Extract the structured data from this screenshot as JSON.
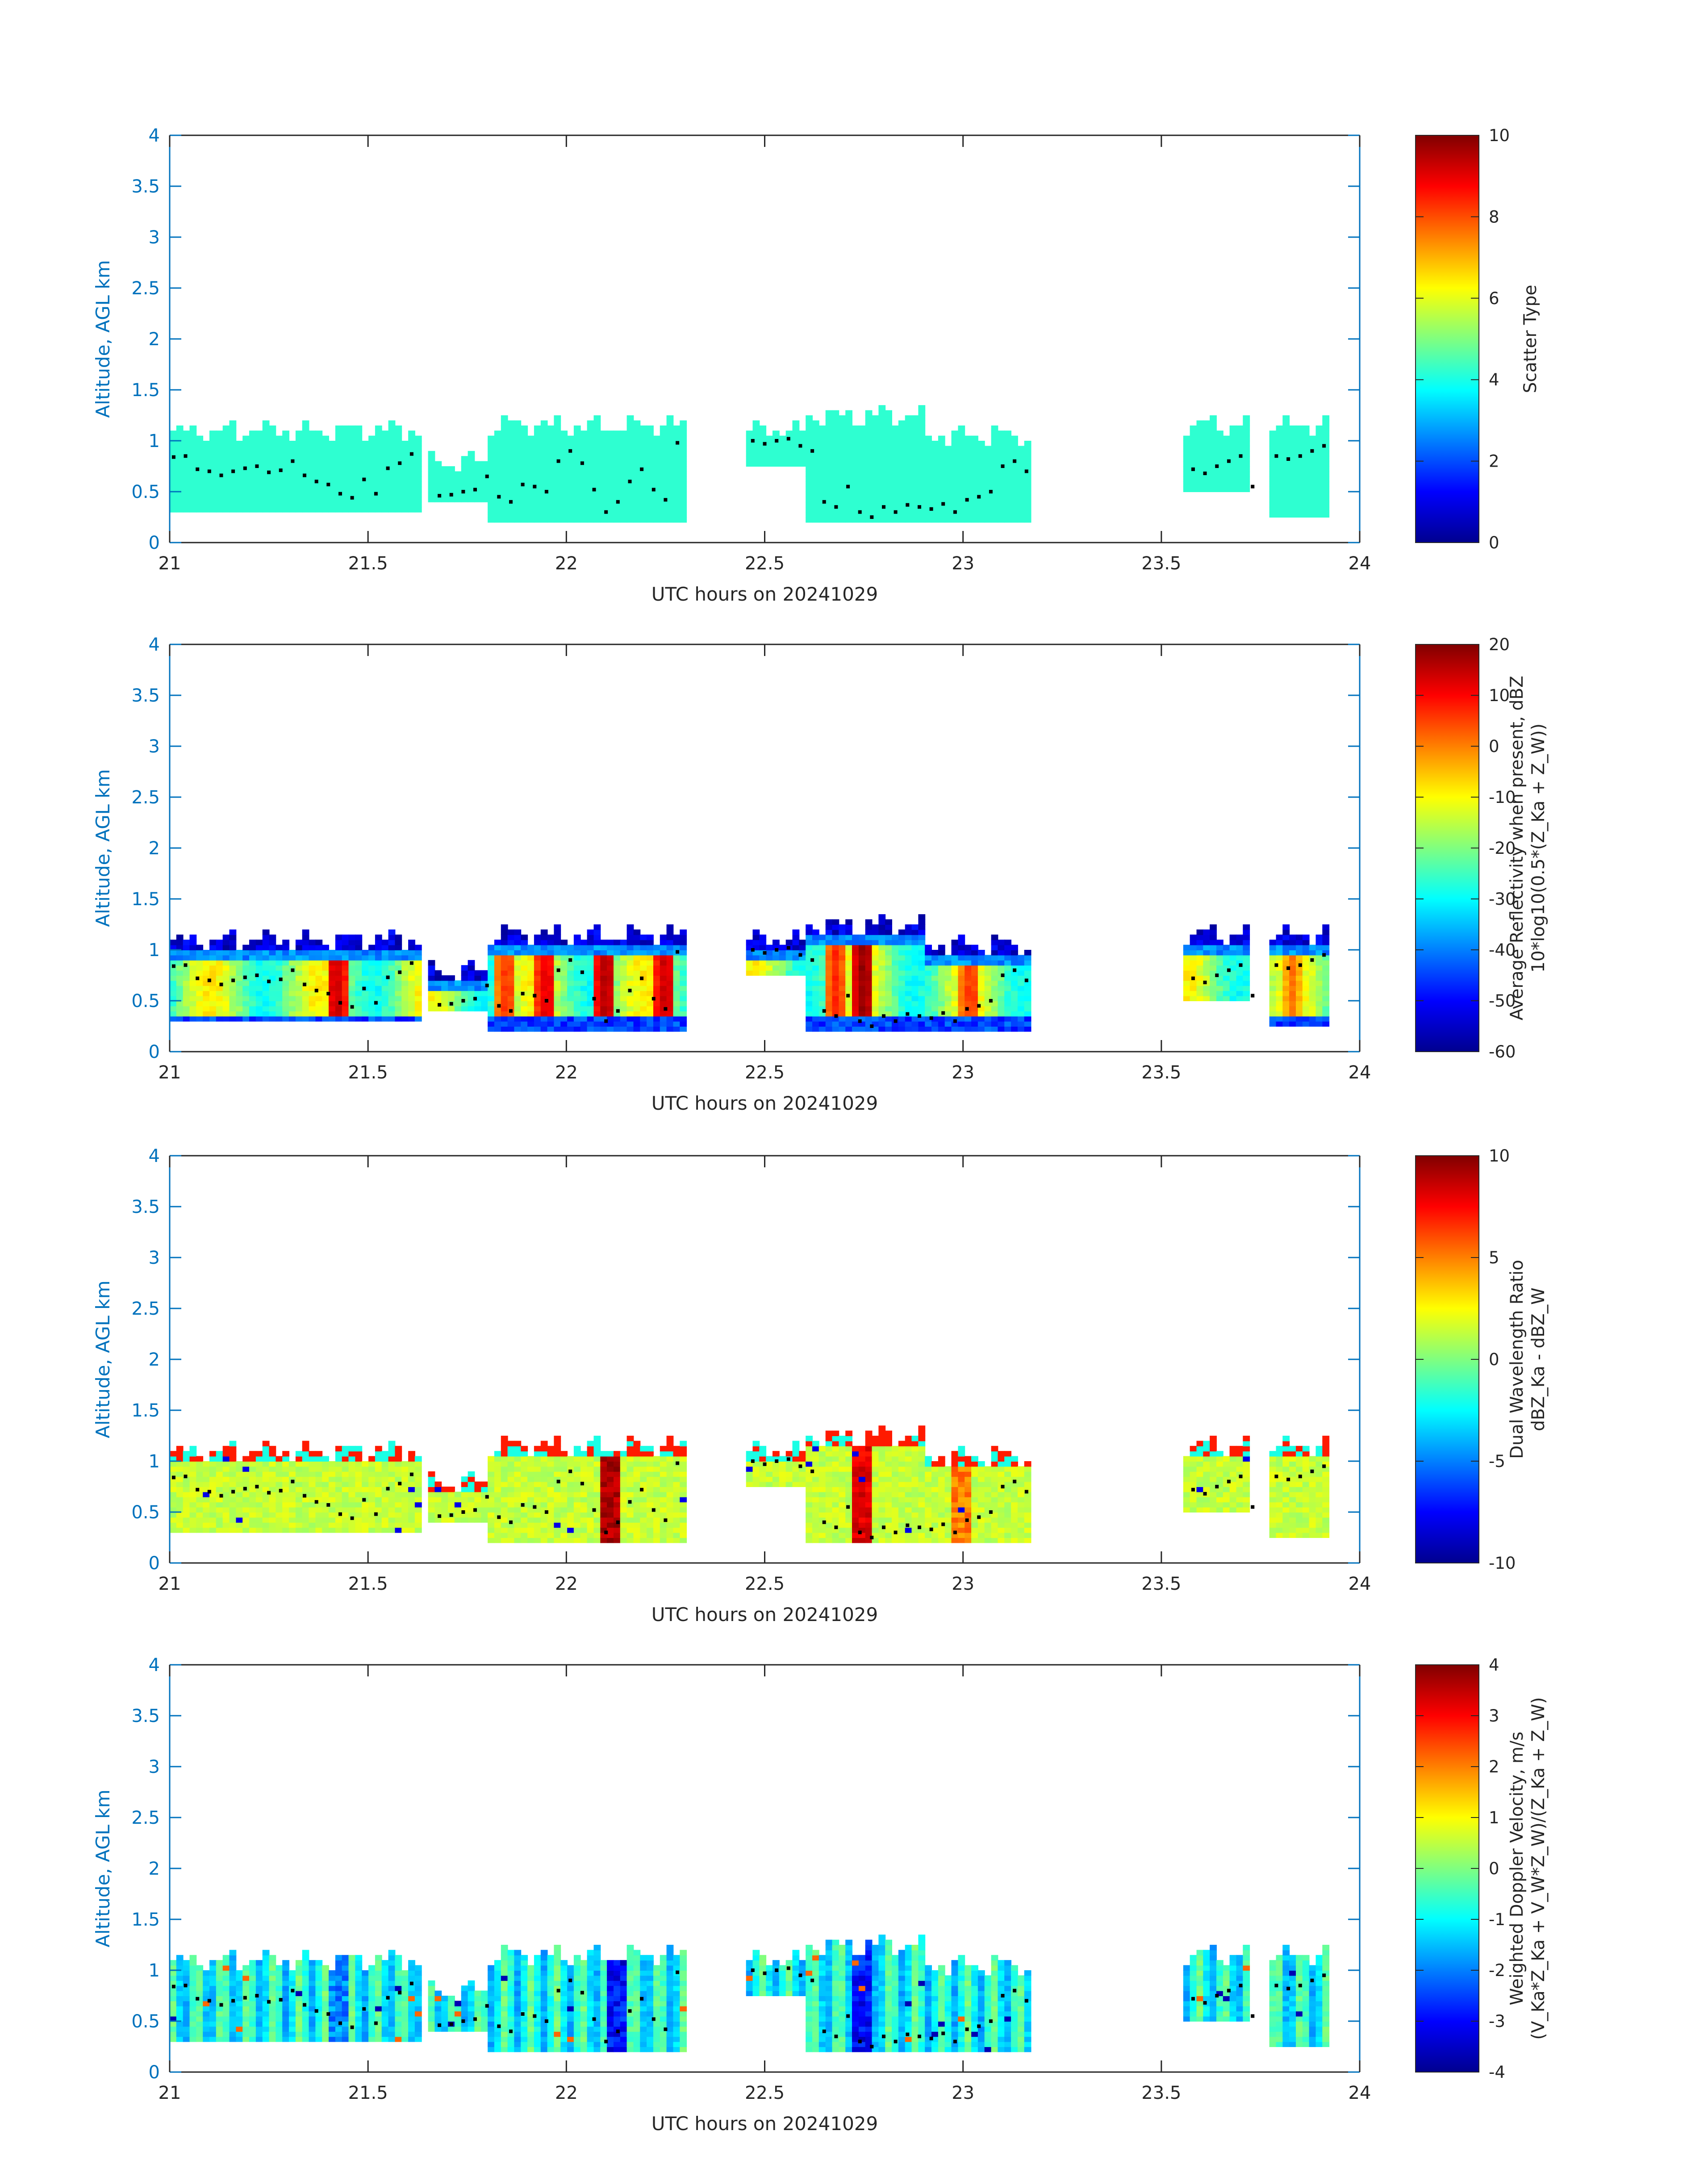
{
  "chart_data": [
    {
      "type": "heatmap",
      "xlabel": "UTC hours on 20241029",
      "ylabel": "Altitude, AGL km",
      "xlim": [
        21,
        24
      ],
      "ylim": [
        0,
        4
      ],
      "xticks": [
        "21",
        "21.5",
        "22",
        "22.5",
        "23",
        "23.5",
        "24"
      ],
      "yticks": [
        "0",
        "0.5",
        "1",
        "1.5",
        "2",
        "2.5",
        "3",
        "3.5",
        "4"
      ],
      "colorbar": {
        "label_lines": [
          "Scatter Type"
        ],
        "range": [
          0,
          10
        ],
        "ticks": [
          "0",
          "2",
          "4",
          "6",
          "8",
          "10"
        ],
        "colormap": "jet"
      },
      "field": "scatter",
      "hotspots": []
    },
    {
      "type": "heatmap",
      "xlabel": "UTC hours on 20241029",
      "ylabel": "Altitude, AGL km",
      "xlim": [
        21,
        24
      ],
      "ylim": [
        0,
        4
      ],
      "xticks": [
        "21",
        "21.5",
        "22",
        "22.5",
        "23",
        "23.5",
        "24"
      ],
      "yticks": [
        "0",
        "0.5",
        "1",
        "1.5",
        "2",
        "2.5",
        "3",
        "3.5",
        "4"
      ],
      "colorbar": {
        "label_lines": [
          "Average Reflectivity when present, dBZ",
          "10*log10(0.5*(Z_Ka + Z_W))"
        ],
        "range": [
          -60,
          20
        ],
        "ticks": [
          "-60",
          "-50",
          "-40",
          "-30",
          "-20",
          "-10",
          "0",
          "10",
          "20"
        ],
        "colormap": "jet"
      },
      "field": "refl",
      "hotspots": [
        {
          "x": 21.42,
          "value": 14
        },
        {
          "x": 21.85,
          "value": 6
        },
        {
          "x": 21.95,
          "value": 12
        },
        {
          "x": 22.1,
          "value": 16
        },
        {
          "x": 22.25,
          "value": 14
        },
        {
          "x": 22.75,
          "value": 18
        },
        {
          "x": 22.68,
          "value": 6
        },
        {
          "x": 23.02,
          "value": 6
        },
        {
          "x": 23.83,
          "value": 0
        }
      ]
    },
    {
      "type": "heatmap",
      "xlabel": "UTC hours on 20241029",
      "ylabel": "Altitude, AGL km",
      "xlim": [
        21,
        24
      ],
      "ylim": [
        0,
        4
      ],
      "xticks": [
        "21",
        "21.5",
        "22",
        "22.5",
        "23",
        "23.5",
        "24"
      ],
      "yticks": [
        "0",
        "0.5",
        "1",
        "1.5",
        "2",
        "2.5",
        "3",
        "3.5",
        "4"
      ],
      "colorbar": {
        "label_lines": [
          "Dual Wavelength Ratio",
          "dBZ_Ka - dBZ_W"
        ],
        "range": [
          -10,
          10
        ],
        "ticks": [
          "-10",
          "-5",
          "0",
          "5",
          "10"
        ],
        "colormap": "jet"
      },
      "field": "dwr",
      "hotspots": [
        {
          "x": 22.11,
          "value": 10
        },
        {
          "x": 22.75,
          "value": 9
        },
        {
          "x": 23.0,
          "value": 6
        }
      ]
    },
    {
      "type": "heatmap",
      "xlabel": "UTC hours on 20241029",
      "ylabel": "Altitude, AGL km",
      "xlim": [
        21,
        24
      ],
      "ylim": [
        0,
        4
      ],
      "xticks": [
        "21",
        "21.5",
        "22",
        "22.5",
        "23",
        "23.5",
        "24"
      ],
      "yticks": [
        "0",
        "0.5",
        "1",
        "1.5",
        "2",
        "2.5",
        "3",
        "3.5",
        "4"
      ],
      "colorbar": {
        "label_lines": [
          "Weighted Doppler Velocity, m/s",
          "(V_Ka*Z_Ka + V_W*Z_W)/(Z_Ka + Z_W)"
        ],
        "range": [
          -4,
          4
        ],
        "ticks": [
          "-4",
          "-3",
          "-2",
          "-1",
          "0",
          "1",
          "2",
          "3",
          "4"
        ],
        "colormap": "jet"
      },
      "field": "vel",
      "hotspots": [
        {
          "x": 22.12,
          "value": -3.5
        },
        {
          "x": 22.75,
          "value": -3.5
        },
        {
          "x": 21.42,
          "value": -2.5
        }
      ]
    }
  ],
  "echo_segments": [
    {
      "x0": 21.0,
      "x1": 21.63,
      "top": 1.1,
      "base": 0.3
    },
    {
      "x0": 21.65,
      "x1": 21.8,
      "top": 0.8,
      "base": 0.4
    },
    {
      "x0": 21.8,
      "x1": 22.3,
      "top": 1.15,
      "base": 0.2
    },
    {
      "x0": 22.45,
      "x1": 22.6,
      "top": 1.1,
      "base": 0.75
    },
    {
      "x0": 22.6,
      "x1": 22.9,
      "top": 1.25,
      "base": 0.2
    },
    {
      "x0": 22.9,
      "x1": 23.17,
      "top": 1.05,
      "base": 0.2
    },
    {
      "x0": 23.55,
      "x1": 23.72,
      "top": 1.15,
      "base": 0.5
    },
    {
      "x0": 23.78,
      "x1": 23.93,
      "top": 1.15,
      "base": 0.25
    }
  ],
  "cloud_base_points": [
    [
      21.01,
      0.84
    ],
    [
      21.04,
      0.85
    ],
    [
      21.07,
      0.72
    ],
    [
      21.1,
      0.7
    ],
    [
      21.13,
      0.66
    ],
    [
      21.16,
      0.7
    ],
    [
      21.19,
      0.73
    ],
    [
      21.22,
      0.75
    ],
    [
      21.25,
      0.69
    ],
    [
      21.28,
      0.71
    ],
    [
      21.31,
      0.8
    ],
    [
      21.34,
      0.66
    ],
    [
      21.37,
      0.6
    ],
    [
      21.4,
      0.57
    ],
    [
      21.43,
      0.48
    ],
    [
      21.46,
      0.44
    ],
    [
      21.49,
      0.62
    ],
    [
      21.52,
      0.48
    ],
    [
      21.55,
      0.73
    ],
    [
      21.58,
      0.78
    ],
    [
      21.61,
      0.87
    ],
    [
      21.68,
      0.46
    ],
    [
      21.71,
      0.47
    ],
    [
      21.74,
      0.5
    ],
    [
      21.77,
      0.52
    ],
    [
      21.8,
      0.65
    ],
    [
      21.83,
      0.45
    ],
    [
      21.86,
      0.4
    ],
    [
      21.89,
      0.57
    ],
    [
      21.92,
      0.55
    ],
    [
      21.95,
      0.5
    ],
    [
      21.98,
      0.8
    ],
    [
      22.01,
      0.9
    ],
    [
      22.04,
      0.78
    ],
    [
      22.07,
      0.52
    ],
    [
      22.1,
      0.3
    ],
    [
      22.13,
      0.4
    ],
    [
      22.16,
      0.6
    ],
    [
      22.19,
      0.72
    ],
    [
      22.22,
      0.52
    ],
    [
      22.25,
      0.42
    ],
    [
      22.28,
      0.98
    ],
    [
      22.47,
      1.0
    ],
    [
      22.5,
      0.97
    ],
    [
      22.53,
      1.0
    ],
    [
      22.56,
      1.02
    ],
    [
      22.59,
      0.95
    ],
    [
      22.62,
      0.9
    ],
    [
      22.65,
      0.4
    ],
    [
      22.68,
      0.35
    ],
    [
      22.71,
      0.55
    ],
    [
      22.74,
      0.3
    ],
    [
      22.77,
      0.25
    ],
    [
      22.8,
      0.35
    ],
    [
      22.83,
      0.3
    ],
    [
      22.86,
      0.37
    ],
    [
      22.89,
      0.35
    ],
    [
      22.92,
      0.33
    ],
    [
      22.95,
      0.38
    ],
    [
      22.98,
      0.3
    ],
    [
      23.01,
      0.42
    ],
    [
      23.04,
      0.45
    ],
    [
      23.07,
      0.5
    ],
    [
      23.1,
      0.75
    ],
    [
      23.13,
      0.8
    ],
    [
      23.16,
      0.7
    ],
    [
      23.58,
      0.72
    ],
    [
      23.61,
      0.68
    ],
    [
      23.64,
      0.75
    ],
    [
      23.67,
      0.8
    ],
    [
      23.7,
      0.85
    ],
    [
      23.73,
      0.55
    ],
    [
      23.79,
      0.85
    ],
    [
      23.82,
      0.82
    ],
    [
      23.85,
      0.85
    ],
    [
      23.88,
      0.9
    ],
    [
      23.91,
      0.95
    ]
  ]
}
